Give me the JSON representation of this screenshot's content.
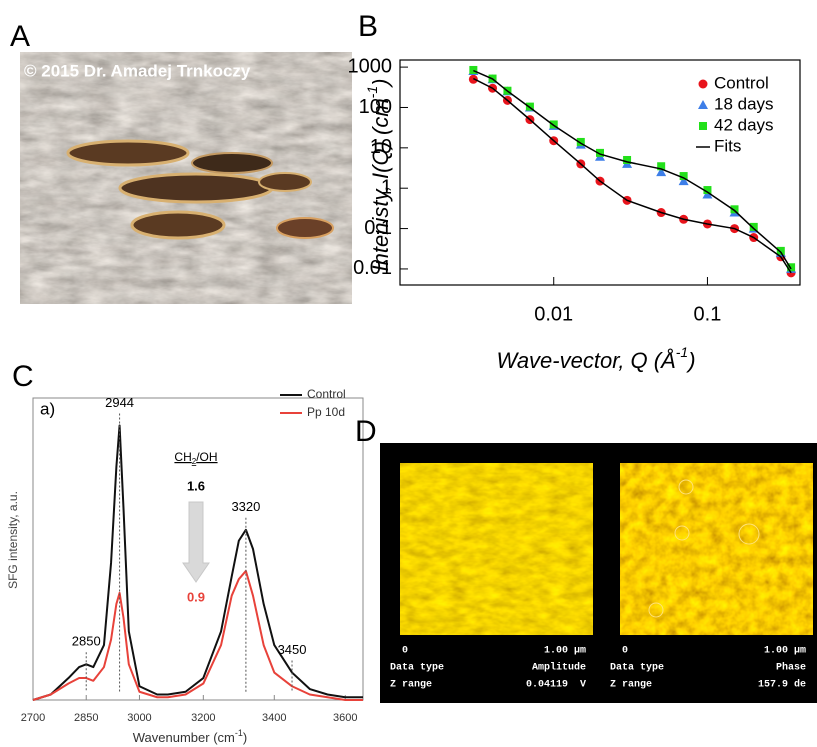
{
  "panels": {
    "a": "A",
    "b": "B",
    "c": "C",
    "d": "D"
  },
  "photo_caption": "© 2015 Dr. Amadej Trnkoczy",
  "chart_data": [
    {
      "type": "scatter",
      "xlabel": {
        "text": "Wave-vector, Q (Å",
        "sup": "-1",
        "end": ")"
      },
      "ylabel": {
        "text": "Intenisty, I(Q) (cm",
        "sup": "-1",
        "end": ")"
      },
      "log_x": true,
      "log_y": true,
      "xlim": [
        0.001,
        0.4
      ],
      "xticks": [
        0.01,
        0.1
      ],
      "ylim": [
        0.004,
        1500
      ],
      "yticks": [
        1000,
        100,
        10,
        1,
        0.1,
        0.01
      ],
      "legend": "top-right",
      "series": [
        {
          "name": "Control",
          "color": "#e8141c",
          "marker": "circle",
          "x": [
            0.003,
            0.004,
            0.005,
            0.007,
            0.01,
            0.015,
            0.02,
            0.03,
            0.05,
            0.07,
            0.1,
            0.15,
            0.2,
            0.3,
            0.35
          ],
          "values": [
            500,
            300,
            150,
            50,
            15,
            4,
            1.5,
            0.5,
            0.25,
            0.17,
            0.13,
            0.1,
            0.06,
            0.02,
            0.008
          ]
        },
        {
          "name": "18 days",
          "color": "#3d7ee8",
          "marker": "triangle",
          "x": [
            0.003,
            0.004,
            0.005,
            0.007,
            0.01,
            0.015,
            0.02,
            0.03,
            0.05,
            0.07,
            0.1,
            0.15,
            0.2,
            0.3,
            0.35
          ],
          "values": [
            800,
            500,
            250,
            100,
            35,
            12,
            6,
            4,
            2.5,
            1.5,
            0.7,
            0.25,
            0.1,
            0.025,
            0.01
          ]
        },
        {
          "name": "42 days",
          "color": "#22e01a",
          "marker": "square",
          "x": [
            0.003,
            0.004,
            0.005,
            0.007,
            0.01,
            0.015,
            0.02,
            0.03,
            0.05,
            0.07,
            0.1,
            0.15,
            0.2,
            0.3,
            0.35
          ],
          "values": [
            850,
            520,
            260,
            105,
            38,
            14,
            7.5,
            5,
            3.5,
            2,
            0.9,
            0.3,
            0.11,
            0.028,
            0.011
          ]
        },
        {
          "name": "Fits",
          "color": "#000000",
          "marker": "line",
          "x": [
            0.003,
            0.004,
            0.005,
            0.007,
            0.01,
            0.015,
            0.02,
            0.03,
            0.05,
            0.07,
            0.1,
            0.15,
            0.2,
            0.3,
            0.35,
            null,
            0.003,
            0.004,
            0.005,
            0.007,
            0.01,
            0.015,
            0.02,
            0.03,
            0.05,
            0.07,
            0.1,
            0.15,
            0.2,
            0.3,
            0.35
          ],
          "values": [
            520,
            300,
            150,
            50,
            15,
            4,
            1.5,
            0.5,
            0.25,
            0.17,
            0.13,
            0.1,
            0.06,
            0.02,
            0.008,
            null,
            820,
            510,
            255,
            100,
            36,
            13,
            7,
            4.5,
            3,
            1.8,
            0.8,
            0.28,
            0.1,
            0.026,
            0.01
          ]
        }
      ]
    },
    {
      "type": "line",
      "label": "a)",
      "xlabel": {
        "text": "Wavenumber (cm",
        "sup": "-1",
        "end": ")"
      },
      "ylabel": "SFG intensity, a.u.",
      "xsegments": [
        {
          "xlim": [
            2700,
            3080
          ],
          "xticks": [
            2700,
            2850,
            3000
          ]
        },
        {
          "xlim": [
            3100,
            3650
          ],
          "xticks": [
            3200,
            3400,
            3600
          ]
        }
      ],
      "ylim": [
        0,
        1.1
      ],
      "legend": "top-right",
      "peaks": [
        2850,
        2944,
        3320,
        3450
      ],
      "ratio_label": {
        "text": "CH",
        "sub": "2",
        "end": "/OH"
      },
      "ratio_before": 1.6,
      "ratio_after": 0.9,
      "series": [
        {
          "name": "Control",
          "color": "#111111",
          "x": [
            2700,
            2750,
            2800,
            2830,
            2850,
            2870,
            2900,
            2920,
            2935,
            2944,
            2955,
            2970,
            3000,
            3050,
            3080,
            3100,
            3150,
            3200,
            3250,
            3280,
            3300,
            3320,
            3340,
            3370,
            3400,
            3450,
            3500,
            3550,
            3600,
            3650
          ],
          "values": [
            0.0,
            0.02,
            0.08,
            0.12,
            0.13,
            0.12,
            0.2,
            0.5,
            0.85,
            1.0,
            0.7,
            0.25,
            0.05,
            0.02,
            0.02,
            0.02,
            0.03,
            0.08,
            0.25,
            0.45,
            0.58,
            0.62,
            0.55,
            0.35,
            0.2,
            0.1,
            0.04,
            0.02,
            0.01,
            0.01
          ]
        },
        {
          "name": "Pp 10d",
          "color": "#e8423a",
          "x": [
            2700,
            2750,
            2800,
            2830,
            2850,
            2870,
            2900,
            2920,
            2935,
            2944,
            2955,
            2970,
            3000,
            3050,
            3080,
            3100,
            3150,
            3200,
            3250,
            3280,
            3300,
            3320,
            3340,
            3370,
            3400,
            3450,
            3500,
            3550,
            3600,
            3650
          ],
          "values": [
            0.0,
            0.02,
            0.06,
            0.08,
            0.08,
            0.07,
            0.12,
            0.22,
            0.35,
            0.39,
            0.3,
            0.13,
            0.03,
            0.01,
            0.01,
            0.01,
            0.02,
            0.06,
            0.2,
            0.38,
            0.44,
            0.47,
            0.38,
            0.2,
            0.1,
            0.05,
            0.02,
            0.01,
            0.0,
            0.0
          ]
        }
      ]
    }
  ],
  "afm": [
    {
      "scale_start": "0",
      "scale_end": "1.00 µm",
      "row1_label": "Data type",
      "row1_value": "Amplitude",
      "row2_label": "Z range",
      "row2_value": "0.04119  V"
    },
    {
      "scale_start": "0",
      "scale_end": "1.00 µm",
      "row1_label": "Data type",
      "row1_value": "Phase",
      "row2_label": "Z range",
      "row2_value": "157.9 de"
    }
  ]
}
